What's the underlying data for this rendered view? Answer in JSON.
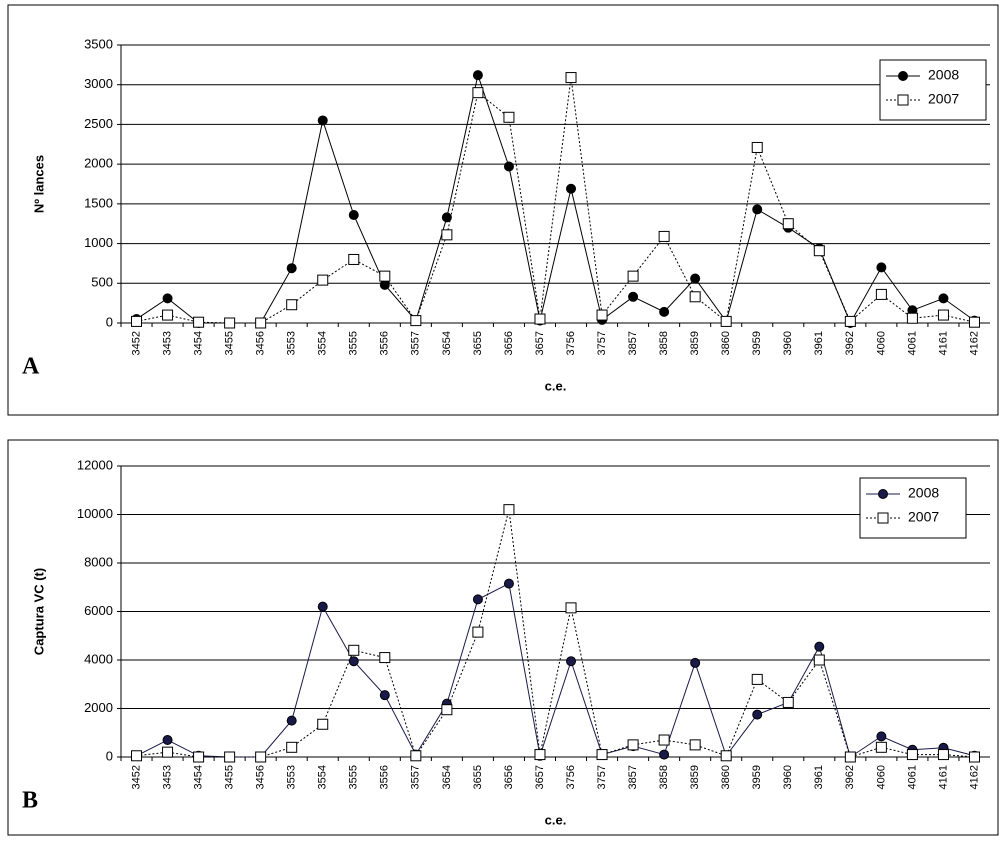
{
  "chart_data": [
    {
      "type": "line",
      "panel_label": "A",
      "y_label": "Nº lances",
      "x_label": "c.e.",
      "categories": [
        "3452",
        "3453",
        "3454",
        "3455",
        "3456",
        "3553",
        "3554",
        "3555",
        "3556",
        "3557",
        "3654",
        "3655",
        "3656",
        "3657",
        "3756",
        "3757",
        "3857",
        "3858",
        "3859",
        "3860",
        "3959",
        "3960",
        "3961",
        "3962",
        "4060",
        "4061",
        "4161",
        "4162"
      ],
      "series": [
        {
          "name": "2008",
          "color": "#000000",
          "line_style": "solid",
          "marker": "circle",
          "values": [
            50,
            310,
            0,
            0,
            0,
            690,
            2550,
            1360,
            480,
            30,
            1330,
            3120,
            1970,
            30,
            1690,
            40,
            330,
            140,
            560,
            20,
            1430,
            1200,
            940,
            0,
            700,
            160,
            310,
            30
          ]
        },
        {
          "name": "2007",
          "color": "#000000",
          "line_style": "dotted",
          "marker": "square",
          "values": [
            20,
            100,
            10,
            0,
            0,
            230,
            540,
            800,
            590,
            30,
            1110,
            2900,
            2590,
            50,
            3090,
            100,
            590,
            1090,
            330,
            20,
            2210,
            1250,
            910,
            20,
            360,
            60,
            100,
            10
          ]
        }
      ],
      "ylim": [
        0,
        3500
      ],
      "yticks": [
        0,
        500,
        1000,
        1500,
        2000,
        2500,
        3000,
        3500
      ],
      "grid": true,
      "legend": "top-right"
    },
    {
      "type": "line",
      "panel_label": "B",
      "y_label": "Captura VC (t)",
      "x_label": "c.e.",
      "categories": [
        "3452",
        "3453",
        "3454",
        "3455",
        "3456",
        "3553",
        "3554",
        "3555",
        "3556",
        "3557",
        "3654",
        "3655",
        "3656",
        "3657",
        "3756",
        "3757",
        "3857",
        "3858",
        "3859",
        "3860",
        "3959",
        "3960",
        "3961",
        "3962",
        "4060",
        "4061",
        "4161",
        "4162"
      ],
      "series": [
        {
          "name": "2008",
          "color": "#1a1a4a",
          "line_style": "solid",
          "marker": "circle",
          "values": [
            50,
            700,
            50,
            0,
            0,
            1500,
            6200,
            3950,
            2550,
            100,
            2200,
            6500,
            7150,
            50,
            3950,
            100,
            450,
            100,
            3880,
            50,
            1750,
            2250,
            4550,
            0,
            850,
            300,
            380,
            50
          ]
        },
        {
          "name": "2007",
          "color": "#000000",
          "line_style": "dotted",
          "marker": "square",
          "values": [
            50,
            200,
            0,
            0,
            0,
            400,
            1350,
            4400,
            4100,
            50,
            1950,
            5150,
            10200,
            100,
            6150,
            100,
            500,
            700,
            500,
            50,
            3200,
            2250,
            4000,
            0,
            400,
            100,
            100,
            0
          ]
        }
      ],
      "ylim": [
        0,
        12000
      ],
      "yticks": [
        0,
        2000,
        4000,
        6000,
        8000,
        10000,
        12000
      ],
      "grid": true,
      "legend": "top-right"
    }
  ]
}
